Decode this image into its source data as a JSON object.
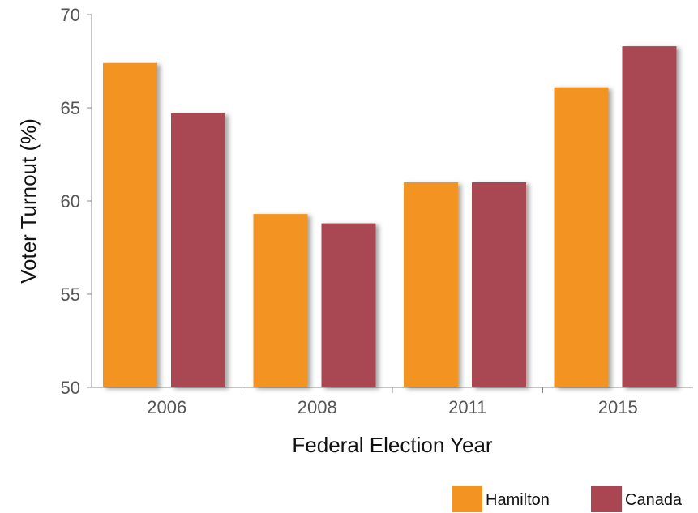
{
  "chart_data": {
    "type": "bar",
    "categories": [
      "2006",
      "2008",
      "2011",
      "2015"
    ],
    "series": [
      {
        "name": "Hamilton",
        "color": "#F39322",
        "values": [
          67.4,
          59.3,
          61.0,
          66.1
        ]
      },
      {
        "name": "Canada",
        "color": "#A94652",
        "values": [
          64.7,
          58.8,
          61.0,
          68.3
        ]
      }
    ],
    "xlabel": "Federal Election Year",
    "ylabel": "Voter Turnout (%)",
    "ylim": [
      50,
      70
    ],
    "yticks": [
      50,
      55,
      60,
      65,
      70
    ],
    "grid": false,
    "legend_position": "bottom-right"
  }
}
